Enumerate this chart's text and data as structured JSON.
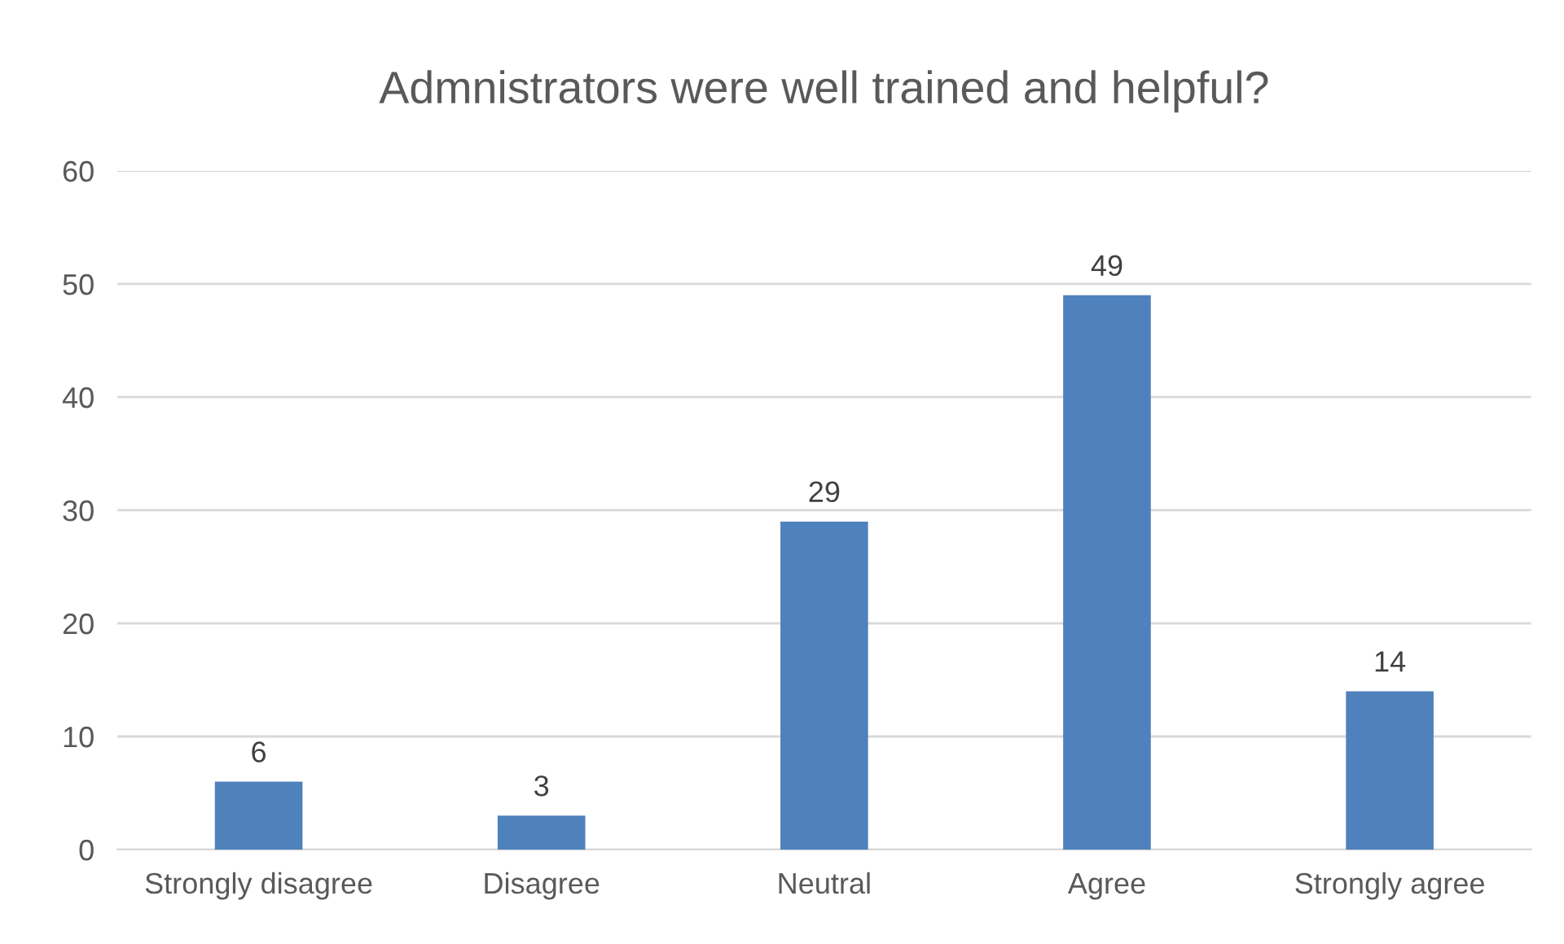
{
  "chart_data": {
    "type": "bar",
    "title": "Admnistrators were well trained and helpful?",
    "categories": [
      "Strongly disagree",
      "Disagree",
      "Neutral",
      "Agree",
      "Strongly agree"
    ],
    "values": [
      6,
      3,
      29,
      49,
      14
    ],
    "color": "#4f81bd",
    "ylim": [
      0,
      60
    ],
    "yticks": [
      0,
      10,
      20,
      30,
      40,
      50,
      60
    ],
    "grid": "y",
    "data_labels": true
  }
}
